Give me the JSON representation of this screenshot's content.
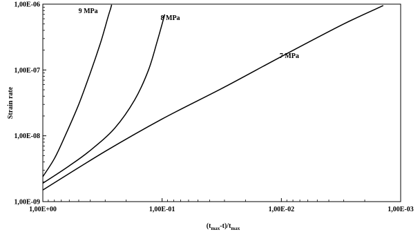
{
  "chart_data": {
    "type": "line",
    "title": "",
    "xlabel": "(t_max-t)/t_max",
    "ylabel": "Strain rate",
    "x_scale": "log",
    "x_reversed": true,
    "y_scale": "log",
    "xlim": [
      1.0,
      0.001
    ],
    "ylim": [
      1e-09,
      1e-06
    ],
    "grid": false,
    "x_tick_labels": [
      "1,00E+00",
      "1,00E-01",
      "1,00E-02",
      "1,00E-03"
    ],
    "y_tick_labels": [
      "1,00E-09",
      "1,00E-08",
      "1,00E-07",
      "1,00E-06"
    ],
    "x_label_parts": {
      "t": "t",
      "sub": "max"
    },
    "series": [
      {
        "name": "9 MPa",
        "label": "9 MPa",
        "x": [
          1.0,
          0.8,
          0.65,
          0.5,
          0.4,
          0.33,
          0.3,
          0.28,
          0.27,
          0.265
        ],
        "y": [
          2.4e-09,
          4.5e-09,
          1e-08,
          3e-08,
          9e-08,
          2.5e-07,
          4.5e-07,
          7e-07,
          8.6e-07,
          9.8e-07
        ]
      },
      {
        "name": "8 MPa",
        "label": "8 MPa",
        "x": [
          1.0,
          0.6,
          0.4,
          0.25,
          0.17,
          0.13,
          0.11,
          0.1,
          0.095
        ],
        "y": [
          1.9e-09,
          3.5e-09,
          6e-09,
          1.3e-08,
          3.5e-08,
          1e-07,
          2.7e-07,
          5e-07,
          7e-07
        ]
      },
      {
        "name": "7 MPa",
        "label": "7 MPa",
        "x": [
          1.0,
          0.3,
          0.1,
          0.03,
          0.01,
          0.003,
          0.0014
        ],
        "y": [
          1.5e-09,
          5.8e-09,
          1.8e-08,
          5.5e-08,
          1.6e-07,
          5e-07,
          9.5e-07
        ]
      }
    ]
  }
}
